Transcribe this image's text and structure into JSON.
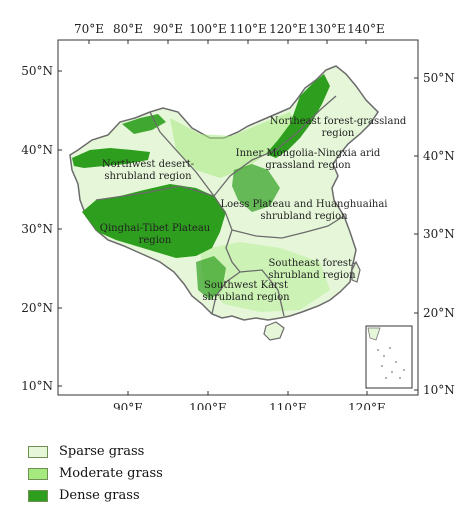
{
  "map": {
    "top_ticks": [
      "70°E",
      "80°E",
      "90°E",
      "100°E",
      "110°E",
      "120°E",
      "130°E",
      "140°E"
    ],
    "bottom_ticks": [
      "90°E",
      "100°E",
      "110°E",
      "120°E"
    ],
    "left_ticks": [
      "50°N",
      "40°N",
      "30°N",
      "20°N",
      "10°N"
    ],
    "right_ticks": [
      "50°N",
      "40°N",
      "30°N",
      "20°N",
      "10°N"
    ],
    "regions": [
      {
        "lines": [
          "Northeast forest-grassland",
          "region"
        ]
      },
      {
        "lines": [
          "Inner Mongolia-Ningxia arid",
          "grassland region"
        ]
      },
      {
        "lines": [
          "Northwest desert-",
          "shrubland region"
        ]
      },
      {
        "lines": [
          "Loess Plateau and Huanghuaihai",
          "shrubland region"
        ]
      },
      {
        "lines": [
          "Qinghai-Tibet Plateau",
          "region"
        ]
      },
      {
        "lines": [
          "Southeast forest-",
          "shrubland region"
        ]
      },
      {
        "lines": [
          "Southwest Karst",
          "shrubland region"
        ]
      }
    ]
  },
  "legend": {
    "items": [
      {
        "label": "Sparse grass",
        "color": "#e6f7d9"
      },
      {
        "label": "Moderate grass",
        "color": "#a6ea7f"
      },
      {
        "label": "Dense grass",
        "color": "#2e9e1e"
      }
    ]
  },
  "colors": {
    "sparse": "#e6f7d9",
    "moderate": "#a6ea7f",
    "dense": "#2e9e1e",
    "border": "#6b6b6b",
    "frame": "#333333"
  }
}
